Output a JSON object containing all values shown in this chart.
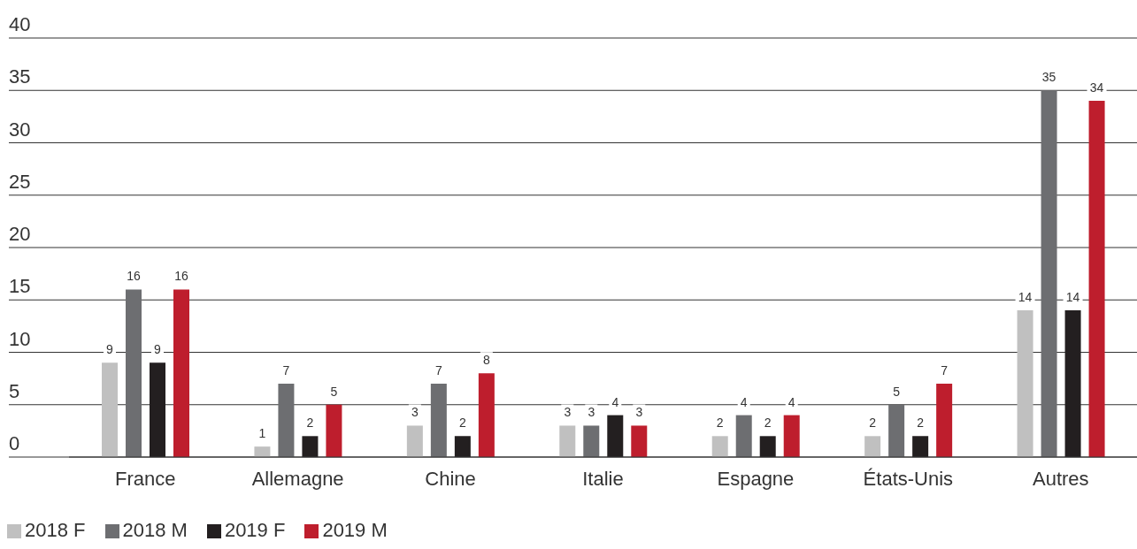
{
  "chart_data": {
    "type": "bar",
    "categories": [
      "France",
      "Allemagne",
      "Chine",
      "Italie",
      "Espagne",
      "États-Unis",
      "Autres"
    ],
    "series": [
      {
        "name": "2018 F",
        "color": "#c0c0c0",
        "values": [
          9,
          1,
          3,
          3,
          2,
          2,
          14
        ]
      },
      {
        "name": "2018 M",
        "color": "#6d6e71",
        "values": [
          16,
          7,
          7,
          3,
          4,
          5,
          35
        ]
      },
      {
        "name": "2019 F",
        "color": "#231f20",
        "values": [
          9,
          2,
          2,
          4,
          2,
          2,
          14
        ]
      },
      {
        "name": "2019 M",
        "color": "#be1e2d",
        "values": [
          16,
          5,
          8,
          3,
          4,
          7,
          34
        ]
      }
    ],
    "ylim": [
      0,
      40
    ],
    "yticks": [
      0,
      5,
      10,
      15,
      20,
      25,
      30,
      35,
      40
    ],
    "grid": "y",
    "legend": "bottom left",
    "data_labels": true
  }
}
